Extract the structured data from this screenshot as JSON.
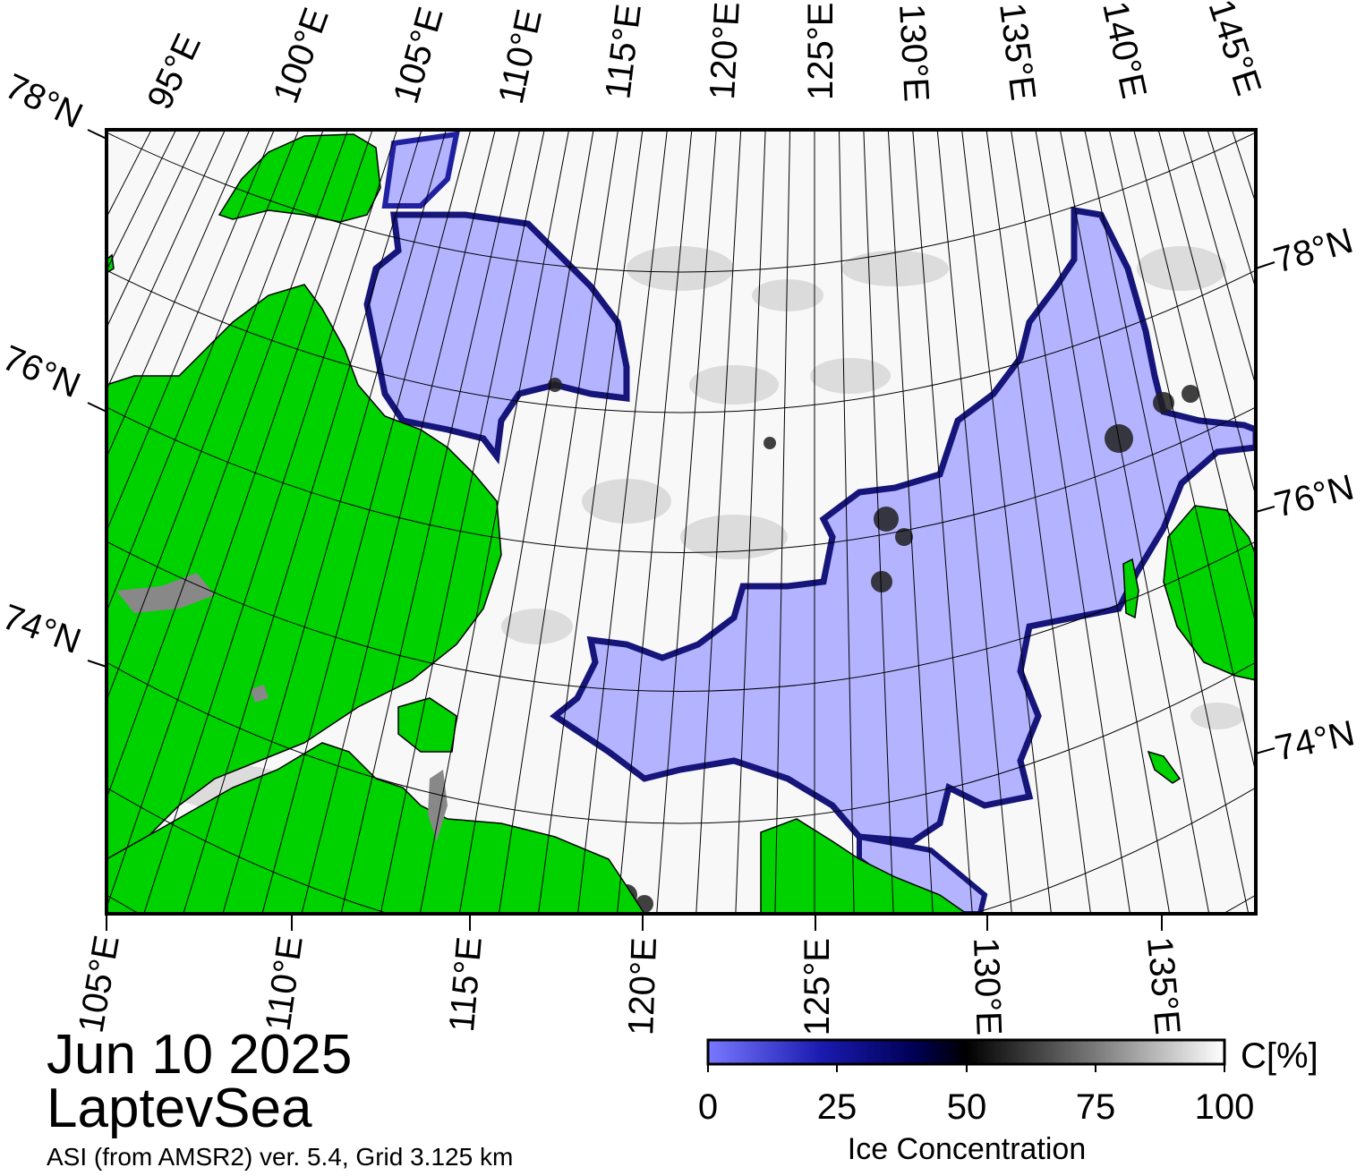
{
  "title": {
    "date": "Jun 10 2025",
    "region": "LaptevSea",
    "product": "ASI (from AMSR2) ver. 5.4,  Grid 3.125 km"
  },
  "colorbar": {
    "label": "Ice Concentration",
    "unit": "C[%]",
    "ticks": [
      "0",
      "25",
      "50",
      "75",
      "100"
    ],
    "range": [
      0,
      100
    ],
    "colors": {
      "low": "#7878ff",
      "mid_low": "#000066",
      "mid": "#000000",
      "mid_high": "#808080",
      "high": "#ffffff"
    }
  },
  "map": {
    "top_lon_labels": [
      "95°E",
      "100°E",
      "105°E",
      "110°E",
      "115°E",
      "120°E",
      "125°E",
      "130°E",
      "135°E",
      "140°E",
      "145°E"
    ],
    "left_lat_labels": [
      "78°N",
      "76°N",
      "74°N"
    ],
    "right_lat_labels": [
      "78°N",
      "76°N",
      "74°N"
    ],
    "bottom_lon_labels": [
      "105°E",
      "110°E",
      "115°E",
      "120°E",
      "125°E",
      "130°E",
      "135°E"
    ],
    "colors": {
      "land": "#00d200",
      "land_ice": "#888888",
      "open_water": "#b3b3ff",
      "sea_ice": "#f8f8f8",
      "frame": "#000000"
    },
    "grid": true
  }
}
